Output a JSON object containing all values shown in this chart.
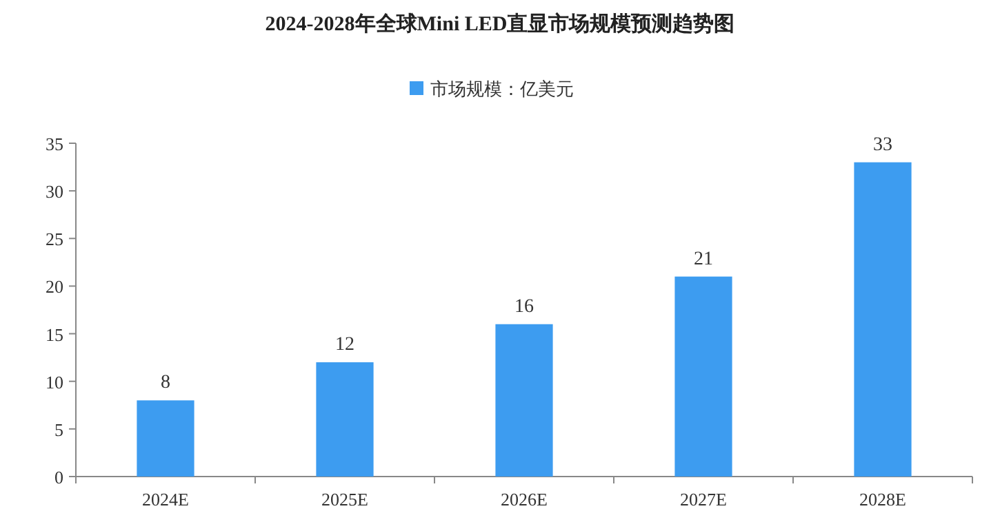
{
  "chart_data": {
    "type": "bar",
    "title": "2024-2028年全球Mini LED直显市场规模预测趋势图",
    "categories": [
      "2024E",
      "2025E",
      "2026E",
      "2027E",
      "2028E"
    ],
    "series": [
      {
        "name": "市场规模：亿美元",
        "color": "#3d9cf0",
        "values": [
          8,
          12,
          16,
          21,
          33
        ]
      }
    ],
    "ylim": [
      0,
      35
    ],
    "yticks": [
      0,
      5,
      10,
      15,
      20,
      25,
      30,
      35
    ],
    "data_labels": true,
    "legend": "top",
    "grid": false
  }
}
